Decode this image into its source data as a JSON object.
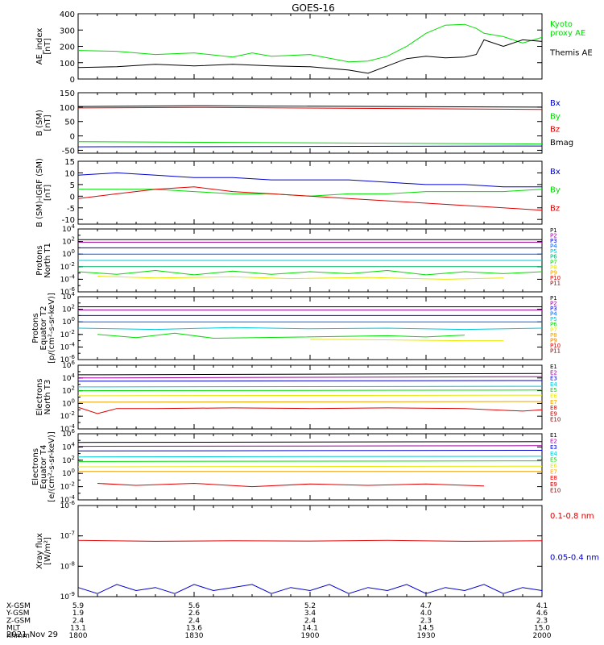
{
  "title": "GOES-16",
  "date_label": "2021 Nov 29",
  "colors": {
    "black": "#000000",
    "red": "#e00000",
    "green": "#00dd00",
    "blue": "#0000cc",
    "cyan": "#00c8d8",
    "yellow": "#e8e800",
    "orange": "#f0a000",
    "purple": "#6000a0",
    "magenta": "#a000a0"
  },
  "time_axis": {
    "ticks": [
      "1800",
      "1830",
      "1900",
      "1930",
      "2000"
    ],
    "range_minutes": [
      0,
      120
    ]
  },
  "footer": {
    "row_labels": [
      "X-GSM",
      "Y-GSM",
      "Z-GSM",
      "MLT",
      "hhmm"
    ],
    "rows": [
      [
        "5.9",
        "5.6",
        "5.2",
        "4.7",
        "4.1"
      ],
      [
        "1.9",
        "2.6",
        "3.4",
        "4.0",
        "4.6"
      ],
      [
        "2.4",
        "2.4",
        "2.4",
        "2.3",
        "2.3"
      ],
      [
        "13.1",
        "13.6",
        "14.1",
        "14.5",
        "15.0"
      ],
      [
        "1800",
        "1830",
        "1900",
        "1930",
        "2000"
      ]
    ]
  },
  "chart_data": [
    {
      "id": "ae",
      "type": "line",
      "ylabel": [
        "AE_index",
        "[nT]"
      ],
      "ylim": [
        0,
        400
      ],
      "yticks": [
        0,
        100,
        200,
        300,
        400
      ],
      "log": false,
      "series": [
        {
          "name": "Kyoto\nproxy AE",
          "color": "#00dd00",
          "x": [
            0,
            10,
            20,
            30,
            40,
            45,
            50,
            60,
            70,
            75,
            80,
            85,
            90,
            95,
            100,
            103,
            105,
            110,
            115,
            120
          ],
          "y": [
            175,
            170,
            150,
            160,
            135,
            160,
            140,
            150,
            105,
            110,
            140,
            200,
            280,
            330,
            335,
            310,
            280,
            260,
            220,
            255
          ]
        },
        {
          "name": "Themis AE",
          "color": "#000000",
          "x": [
            0,
            10,
            20,
            30,
            40,
            45,
            50,
            60,
            70,
            75,
            80,
            85,
            90,
            95,
            100,
            103,
            105,
            110,
            115,
            120
          ],
          "y": [
            70,
            75,
            90,
            80,
            90,
            85,
            80,
            75,
            55,
            35,
            80,
            125,
            140,
            130,
            135,
            150,
            240,
            200,
            240,
            230
          ]
        }
      ]
    },
    {
      "id": "bsm",
      "type": "line",
      "ylabel": [
        "B (SM)",
        "[nT]"
      ],
      "ylim": [
        -60,
        150
      ],
      "yticks": [
        -50,
        0,
        50,
        100,
        150
      ],
      "log": false,
      "series": [
        {
          "name": "Bx",
          "color": "#0000cc",
          "x": [
            0,
            120
          ],
          "y": [
            -38,
            -35
          ]
        },
        {
          "name": "By",
          "color": "#00dd00",
          "x": [
            0,
            120
          ],
          "y": [
            -20,
            -28
          ]
        },
        {
          "name": "Bz",
          "color": "#e00000",
          "x": [
            0,
            30,
            120
          ],
          "y": [
            97,
            99,
            92
          ]
        },
        {
          "name": "Bmag",
          "color": "#000000",
          "x": [
            0,
            30,
            120
          ],
          "y": [
            102,
            105,
            100
          ]
        }
      ]
    },
    {
      "id": "bsm-igrf",
      "type": "line",
      "ylabel": [
        "B (SM)-IGRF (SM)",
        "[nT]"
      ],
      "ylim": [
        -12,
        15
      ],
      "yticks": [
        -10,
        -5,
        0,
        5,
        10,
        15
      ],
      "log": false,
      "series": [
        {
          "name": "Bx",
          "color": "#0000cc",
          "x": [
            0,
            10,
            20,
            30,
            40,
            50,
            60,
            70,
            80,
            90,
            100,
            110,
            120
          ],
          "y": [
            9,
            10,
            9,
            8,
            8,
            7,
            7,
            7,
            6,
            5,
            5,
            4,
            4
          ]
        },
        {
          "name": "By",
          "color": "#00dd00",
          "x": [
            0,
            10,
            20,
            30,
            40,
            50,
            60,
            70,
            80,
            90,
            100,
            110,
            120
          ],
          "y": [
            3,
            3,
            3,
            2,
            1,
            1,
            0,
            1,
            1,
            2,
            2,
            2,
            3
          ]
        },
        {
          "name": "Bz",
          "color": "#e00000",
          "x": [
            0,
            10,
            20,
            30,
            40,
            50,
            60,
            70,
            80,
            90,
            100,
            110,
            120
          ],
          "y": [
            -1,
            1,
            3,
            4,
            2,
            1,
            0,
            -1,
            -2,
            -3,
            -4,
            -5,
            -6
          ]
        }
      ]
    },
    {
      "id": "protons-t1",
      "type": "line",
      "ylabel": [
        "Protons",
        "North T1"
      ],
      "ylim": [
        -6,
        4
      ],
      "yticks": [
        -6,
        -4,
        -2,
        0,
        2,
        4
      ],
      "log": true,
      "series": [
        {
          "name": "P1",
          "color": "#000000",
          "x": [
            0,
            120
          ],
          "y": [
            2.3,
            2.3
          ]
        },
        {
          "name": "P2",
          "color": "#a000a0",
          "x": [
            0,
            120
          ],
          "y": [
            1.9,
            1.9
          ]
        },
        {
          "name": "P3",
          "color": "#0000cc",
          "x": [
            0,
            120
          ],
          "y": [
            1.0,
            1.0
          ]
        },
        {
          "name": "P4",
          "color": "#0060ff",
          "x": [
            0,
            120
          ],
          "y": [
            0.0,
            0.0
          ]
        },
        {
          "name": "P5",
          "color": "#00c8d8",
          "x": [
            0,
            120
          ],
          "y": [
            -1.0,
            -1.0
          ]
        },
        {
          "name": "P6",
          "color": "#00b070",
          "x": [
            0,
            120
          ],
          "y": [
            -2.0,
            -2.0
          ]
        },
        {
          "name": "P7",
          "color": "#00dd00",
          "x": [
            0,
            10,
            20,
            30,
            40,
            50,
            60,
            70,
            80,
            90,
            100,
            110,
            120
          ],
          "y": [
            -2.8,
            -3.2,
            -2.6,
            -3.3,
            -2.7,
            -3.2,
            -2.8,
            -3.1,
            -2.6,
            -3.3,
            -2.8,
            -3.1,
            -2.8
          ]
        },
        {
          "name": "P8",
          "color": "#e8e800",
          "x": [
            5,
            20,
            40,
            55,
            75,
            95,
            110
          ],
          "y": [
            -3.5,
            -3.8,
            -3.6,
            -3.9,
            -3.7,
            -4.0,
            -3.8
          ]
        },
        {
          "name": "P9",
          "color": "#f0a000",
          "x": [],
          "y": []
        },
        {
          "name": "P10",
          "color": "#e00000",
          "x": [],
          "y": []
        },
        {
          "name": "P11",
          "color": "#800000",
          "x": [],
          "y": []
        }
      ]
    },
    {
      "id": "protons-t2",
      "type": "line",
      "ylabel": [
        "Protons",
        "Equator T2",
        "[p/(cm²-s-sr-keV)]"
      ],
      "ylim": [
        -6,
        4
      ],
      "yticks": [
        -6,
        -4,
        -2,
        0,
        2,
        4
      ],
      "log": true,
      "series": [
        {
          "name": "P1",
          "color": "#000000",
          "x": [
            0,
            120
          ],
          "y": [
            2.4,
            2.4
          ]
        },
        {
          "name": "P2",
          "color": "#a000a0",
          "x": [
            0,
            120
          ],
          "y": [
            1.9,
            1.9
          ]
        },
        {
          "name": "P3",
          "color": "#0000cc",
          "x": [
            0,
            120
          ],
          "y": [
            1.0,
            1.0
          ]
        },
        {
          "name": "P4",
          "color": "#0060ff",
          "x": [
            0,
            120
          ],
          "y": [
            0.0,
            0.0
          ]
        },
        {
          "name": "P5",
          "color": "#00c8d8",
          "x": [
            0,
            20,
            40,
            60,
            80,
            100,
            120
          ],
          "y": [
            -1.0,
            -1.2,
            -0.9,
            -1.1,
            -1.0,
            -1.2,
            -1.0
          ]
        },
        {
          "name": "P6",
          "color": "#00dd00",
          "x": [
            5,
            15,
            25,
            35,
            80,
            90,
            100
          ],
          "y": [
            -2.0,
            -2.5,
            -1.8,
            -2.6,
            -2.2,
            -2.4,
            -2.1
          ]
        },
        {
          "name": "P7",
          "color": "#e8e800",
          "x": [
            60,
            70,
            100,
            110
          ],
          "y": [
            -2.8,
            -2.8,
            -3.0,
            -3.0
          ]
        },
        {
          "name": "P8",
          "color": "#f0a000",
          "x": [],
          "y": []
        },
        {
          "name": "P9",
          "color": "#e08000",
          "x": [],
          "y": []
        },
        {
          "name": "P10",
          "color": "#e00000",
          "x": [],
          "y": []
        },
        {
          "name": "P11",
          "color": "#800000",
          "x": [],
          "y": []
        }
      ]
    },
    {
      "id": "electrons-t3",
      "type": "line",
      "ylabel": [
        "Electrons",
        "North T3"
      ],
      "ylim": [
        -4,
        6
      ],
      "yticks": [
        -4,
        -2,
        0,
        2,
        4,
        6
      ],
      "log": true,
      "series": [
        {
          "name": "E1",
          "color": "#000000",
          "x": [
            0,
            120
          ],
          "y": [
            4.5,
            4.7
          ]
        },
        {
          "name": "E2",
          "color": "#a000a0",
          "x": [
            0,
            120
          ],
          "y": [
            4.0,
            4.2
          ]
        },
        {
          "name": "E3",
          "color": "#0000cc",
          "x": [
            0,
            120
          ],
          "y": [
            3.5,
            3.6
          ]
        },
        {
          "name": "E4",
          "color": "#00c8d8",
          "x": [
            0,
            120
          ],
          "y": [
            2.6,
            2.7
          ]
        },
        {
          "name": "E5",
          "color": "#00dd00",
          "x": [
            0,
            120
          ],
          "y": [
            2.0,
            2.1
          ]
        },
        {
          "name": "E6",
          "color": "#e8e800",
          "x": [
            0,
            120
          ],
          "y": [
            1.2,
            1.3
          ]
        },
        {
          "name": "E7",
          "color": "#f0a000",
          "x": [
            0,
            120
          ],
          "y": [
            0.2,
            0.3
          ]
        },
        {
          "name": "E8",
          "color": "#e00000",
          "x": [
            0,
            5,
            10,
            20,
            40,
            60,
            80,
            100,
            115,
            120
          ],
          "y": [
            -0.6,
            -1.6,
            -0.8,
            -0.8,
            -0.7,
            -0.8,
            -0.7,
            -0.8,
            -1.2,
            -1.0
          ]
        },
        {
          "name": "E9",
          "color": "#b00000",
          "x": [],
          "y": []
        },
        {
          "name": "E10",
          "color": "#800000",
          "x": [],
          "y": []
        }
      ]
    },
    {
      "id": "electrons-t4",
      "type": "line",
      "ylabel": [
        "Electrons",
        "Equator T4",
        "[e/(cm²-s-sr-keV)]"
      ],
      "ylim": [
        -4,
        6
      ],
      "yticks": [
        -4,
        -2,
        0,
        2,
        4,
        6
      ],
      "log": true,
      "series": [
        {
          "name": "E1",
          "color": "#000000",
          "x": [
            0,
            120
          ],
          "y": [
            4.7,
            4.8
          ]
        },
        {
          "name": "E2",
          "color": "#a000a0",
          "x": [
            0,
            120
          ],
          "y": [
            4.1,
            4.2
          ]
        },
        {
          "name": "E3",
          "color": "#0000cc",
          "x": [
            0,
            120
          ],
          "y": [
            3.4,
            3.5
          ]
        },
        {
          "name": "E4",
          "color": "#00c8d8",
          "x": [
            0,
            120
          ],
          "y": [
            2.5,
            2.6
          ]
        },
        {
          "name": "E5",
          "color": "#00dd00",
          "x": [
            0,
            120
          ],
          "y": [
            1.8,
            1.9
          ]
        },
        {
          "name": "E6",
          "color": "#e8e800",
          "x": [
            0,
            120
          ],
          "y": [
            1.0,
            1.1
          ]
        },
        {
          "name": "E7",
          "color": "#f0a000",
          "x": [
            0,
            120
          ],
          "y": [
            0.3,
            0.3
          ]
        },
        {
          "name": "E8",
          "color": "#e00000",
          "x": [
            5,
            15,
            30,
            45,
            60,
            75,
            90,
            105
          ],
          "y": [
            -1.5,
            -1.8,
            -1.5,
            -2.0,
            -1.6,
            -1.8,
            -1.6,
            -1.9
          ]
        },
        {
          "name": "E9",
          "color": "#b00000",
          "x": [],
          "y": []
        },
        {
          "name": "E10",
          "color": "#800000",
          "x": [],
          "y": []
        }
      ]
    },
    {
      "id": "xray",
      "type": "line",
      "ylabel": [
        "Xray flux",
        "[W/m²]"
      ],
      "ylim": [
        -9,
        -6
      ],
      "yticks": [
        -9,
        -8,
        -7,
        -6
      ],
      "log": true,
      "series": [
        {
          "name": "0.1-0.8 nm",
          "color": "#e00000",
          "x": [
            0,
            20,
            40,
            60,
            80,
            100,
            120
          ],
          "y": [
            -7.15,
            -7.18,
            -7.16,
            -7.17,
            -7.15,
            -7.18,
            -7.16
          ]
        },
        {
          "name": "0.05-0.4 nm",
          "color": "#0000cc",
          "x": [
            0,
            5,
            10,
            15,
            20,
            25,
            30,
            35,
            40,
            45,
            50,
            55,
            60,
            65,
            70,
            75,
            80,
            85,
            90,
            95,
            100,
            105,
            110,
            115,
            120
          ],
          "y": [
            -8.7,
            -8.9,
            -8.6,
            -8.8,
            -8.7,
            -8.9,
            -8.6,
            -8.8,
            -8.7,
            -8.6,
            -8.9,
            -8.7,
            -8.8,
            -8.6,
            -8.9,
            -8.7,
            -8.8,
            -8.6,
            -8.9,
            -8.7,
            -8.8,
            -8.6,
            -8.9,
            -8.7,
            -8.8
          ]
        }
      ]
    }
  ]
}
